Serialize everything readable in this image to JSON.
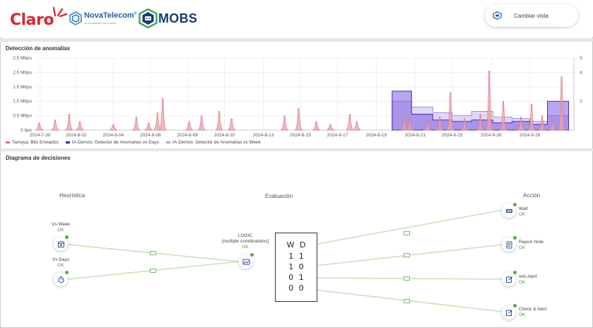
{
  "header": {
    "logos": {
      "claro": "Claro",
      "nova_name": "NovaTelecom",
      "nova_reg": "®",
      "nova_tagline": "La excelencia nos mueve",
      "mobs": "MOBS"
    },
    "cambiar_vista": "Cambiar vista"
  },
  "chart_section": {
    "title": "Detección de anomalías"
  },
  "chart_data": {
    "type": "area",
    "title": "",
    "y_left_ticks": [
      "2.5 Mbps",
      "2.0 Mbps",
      "1.5 Mbps",
      "1.0 Mbps",
      "0.5 Mbps",
      "0 bps"
    ],
    "y_right_ticks": [
      "5",
      "4",
      "2"
    ],
    "x_ticks": [
      "2024-7-30",
      "2024-8-02",
      "2024-8-04",
      "2024-8-06",
      "2024-8-08",
      "2024-8-10",
      "2024-8-13",
      "2024-8-15",
      "2024-8-17",
      "2024-8-19",
      "2024-8-21",
      "2024-8-23",
      "2024-8-26",
      "2024-8-28"
    ],
    "ylim_mbps": [
      0,
      2.5
    ],
    "ylim_right": [
      0,
      5
    ],
    "grid": true,
    "series": [
      {
        "name": "Tamaya: Bits Enviados",
        "color": "#d9737d",
        "peaks_x_days": [
          0.3,
          1.2,
          2.0,
          2.6,
          4.5,
          5.8,
          6.5,
          7.0,
          7.3,
          8.8,
          9.5,
          10.5,
          11.2,
          14.2,
          15.0,
          16.0,
          16.8,
          17.9,
          18.3,
          21.0,
          21.3,
          22.3,
          23.0,
          23.6,
          24.4,
          25.3,
          25.8,
          26.6,
          27.6,
          28.2,
          28.8,
          29.4,
          29.9
        ],
        "peaks_mbps": [
          0.25,
          0.35,
          0.55,
          0.3,
          0.2,
          0.45,
          0.25,
          0.6,
          1.1,
          0.3,
          0.5,
          0.65,
          0.4,
          0.5,
          0.75,
          0.3,
          0.2,
          0.55,
          0.3,
          0.55,
          0.4,
          0.3,
          0.45,
          1.3,
          0.4,
          0.55,
          2.05,
          1.0,
          0.45,
          0.9,
          0.5,
          0.3,
          1.85
        ]
      },
      {
        "name": "IA-Demos: Detector de Anomalías vs Days",
        "color": "#5a33c9",
        "steps_x_days": [
          20.3,
          21.4,
          22.6,
          23.7,
          24.8,
          26.0,
          27.1,
          28.1,
          29.1,
          30.3
        ],
        "steps_value": [
          2.7,
          1.1,
          0.7,
          0.6,
          0.7,
          0.5,
          0.6,
          0.4,
          2.0,
          0
        ]
      },
      {
        "name": "IA-Demos: Detector de Anomalías vs Week",
        "color": "#b49ae6",
        "steps_x_days": [
          20.3,
          21.4,
          22.6,
          23.7,
          24.8,
          26.0,
          27.1,
          28.1,
          29.1,
          30.3
        ],
        "steps_value": [
          2.0,
          1.6,
          1.2,
          1.0,
          1.3,
          0.9,
          0.8,
          0.6,
          1.0,
          0
        ]
      }
    ]
  },
  "diagram_section": {
    "title": "Diagrama de decisiones",
    "col_heuristica": "Heurística",
    "col_evaluacion": "Evaluación",
    "col_accion": "Acción",
    "heuristics": [
      {
        "name": "Vs Week",
        "status": "OK"
      },
      {
        "name": "Vs Days",
        "status": "OK"
      }
    ],
    "logic": {
      "name": "LOGIC",
      "detail": "[multiple combinations]",
      "status": "OK"
    },
    "truth_table": {
      "header": "W D",
      "rows": [
        "1 1",
        "1 0",
        "0 1",
        "0 0"
      ]
    },
    "actions": [
      {
        "name": "Wait",
        "status": "OK"
      },
      {
        "name": "Report Note",
        "status": "OK"
      },
      {
        "name": "Info Alert",
        "status": "OK"
      },
      {
        "name": "Check & Alert",
        "status": "OK"
      }
    ]
  }
}
